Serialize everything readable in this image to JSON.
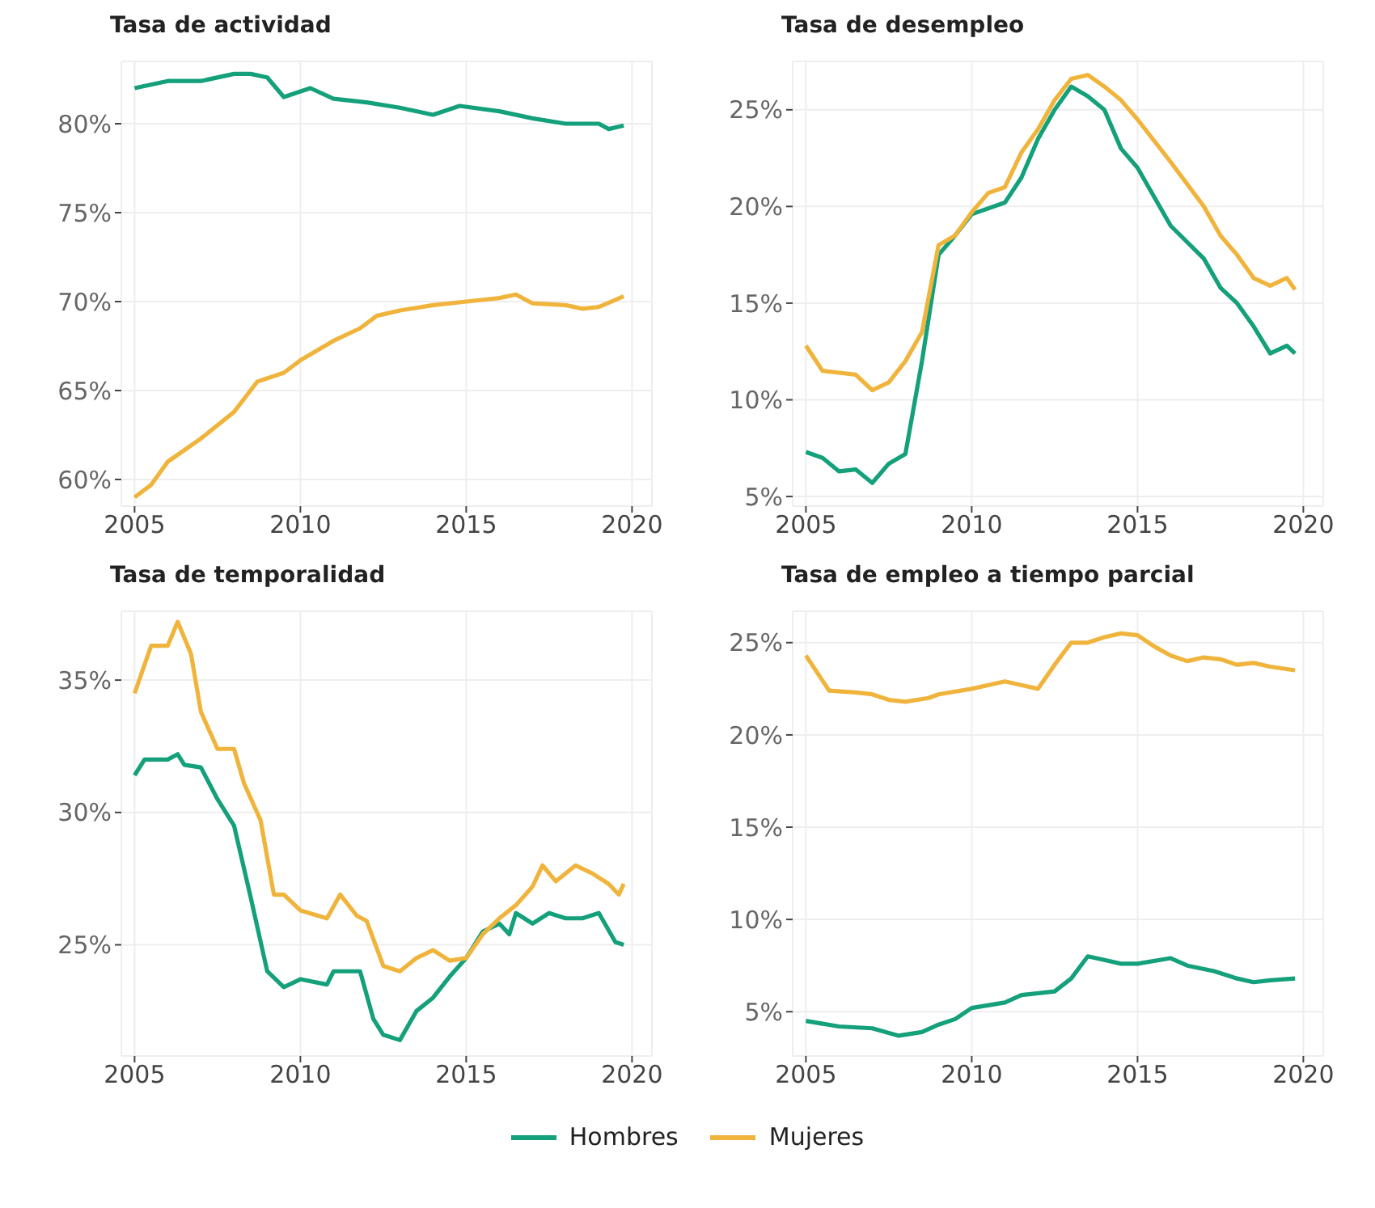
{
  "chart_data": [
    {
      "type": "line",
      "title": "Tasa de actividad",
      "xlim": [
        2004.6,
        2020.6
      ],
      "xticks": [
        2005,
        2010,
        2015,
        2020
      ],
      "ylim": [
        58.5,
        83.5
      ],
      "yticks": [
        {
          "value": 60,
          "label": "60%"
        },
        {
          "value": 65,
          "label": "65%"
        },
        {
          "value": 70,
          "label": "70%"
        },
        {
          "value": 75,
          "label": "75%"
        },
        {
          "value": 80,
          "label": "80%"
        }
      ],
      "grid": true,
      "series": [
        {
          "color": "#13a07a",
          "x": [
            2005,
            2006,
            2007,
            2008,
            2008.5,
            2009,
            2009.5,
            2010.3,
            2011,
            2012,
            2013,
            2014,
            2014.8,
            2016,
            2017,
            2018,
            2019,
            2019.3,
            2019.75
          ],
          "values": [
            82.0,
            82.4,
            82.4,
            82.8,
            82.8,
            82.6,
            81.5,
            82.0,
            81.4,
            81.2,
            80.9,
            80.5,
            81.0,
            80.7,
            80.3,
            80.0,
            80.0,
            79.7,
            79.9
          ]
        },
        {
          "color": "#f0b43c",
          "x": [
            2005,
            2005.5,
            2006,
            2007,
            2008,
            2008.7,
            2009.5,
            2010,
            2011,
            2011.8,
            2012.3,
            2013,
            2014,
            2015,
            2016,
            2016.5,
            2017,
            2018,
            2018.5,
            2019,
            2019.75
          ],
          "values": [
            59.0,
            59.7,
            61.0,
            62.3,
            63.8,
            65.5,
            66.0,
            66.7,
            67.8,
            68.5,
            69.2,
            69.5,
            69.8,
            70.0,
            70.2,
            70.4,
            69.9,
            69.8,
            69.6,
            69.7,
            70.3
          ]
        }
      ]
    },
    {
      "type": "line",
      "title": "Tasa de desempleo",
      "xlim": [
        2004.6,
        2020.6
      ],
      "xticks": [
        2005,
        2010,
        2015,
        2020
      ],
      "ylim": [
        4.5,
        27.5
      ],
      "yticks": [
        {
          "value": 5,
          "label": "5%"
        },
        {
          "value": 10,
          "label": "10%"
        },
        {
          "value": 15,
          "label": "15%"
        },
        {
          "value": 20,
          "label": "20%"
        },
        {
          "value": 25,
          "label": "25%"
        }
      ],
      "grid": true,
      "series": [
        {
          "color": "#13a07a",
          "x": [
            2005,
            2005.5,
            2006,
            2006.5,
            2007,
            2007.5,
            2008,
            2008.5,
            2009,
            2009.5,
            2010,
            2011,
            2011.5,
            2012,
            2012.5,
            2013,
            2013.5,
            2014,
            2014.5,
            2015,
            2016,
            2017,
            2017.5,
            2018,
            2018.5,
            2019,
            2019.5,
            2019.75
          ],
          "values": [
            7.3,
            7.0,
            6.3,
            6.4,
            5.7,
            6.7,
            7.2,
            12,
            17.5,
            18.5,
            19.6,
            20.2,
            21.5,
            23.5,
            25,
            26.2,
            25.7,
            25.0,
            23.0,
            22.0,
            19.0,
            17.3,
            15.8,
            15.0,
            13.8,
            12.4,
            12.8,
            12.4
          ]
        },
        {
          "color": "#f0b43c",
          "x": [
            2005,
            2005.5,
            2006,
            2006.5,
            2007,
            2007.5,
            2008,
            2008.5,
            2009,
            2009.5,
            2010,
            2010.5,
            2011,
            2011.5,
            2012,
            2012.5,
            2013,
            2013.5,
            2014,
            2014.5,
            2015,
            2016,
            2017,
            2017.5,
            2018,
            2018.5,
            2019,
            2019.5,
            2019.75
          ],
          "values": [
            12.8,
            11.5,
            11.4,
            11.3,
            10.5,
            10.9,
            12,
            13.5,
            18.0,
            18.5,
            19.7,
            20.7,
            21.0,
            22.8,
            24.0,
            25.5,
            26.6,
            26.8,
            26.2,
            25.5,
            24.5,
            22.3,
            20.0,
            18.5,
            17.5,
            16.3,
            15.9,
            16.3,
            15.7
          ]
        }
      ]
    },
    {
      "type": "line",
      "title": "Tasa de temporalidad",
      "xlim": [
        2004.6,
        2020.6
      ],
      "xticks": [
        2005,
        2010,
        2015,
        2020
      ],
      "ylim": [
        20.8,
        37.6
      ],
      "yticks": [
        {
          "value": 25,
          "label": "25%"
        },
        {
          "value": 30,
          "label": "30%"
        },
        {
          "value": 35,
          "label": "35%"
        }
      ],
      "grid": true,
      "series": [
        {
          "color": "#13a07a",
          "x": [
            2005,
            2005.3,
            2006,
            2006.3,
            2006.5,
            2007,
            2007.5,
            2008,
            2008.5,
            2009,
            2009.5,
            2010,
            2010.8,
            2011,
            2011.8,
            2012.2,
            2012.5,
            2013,
            2013.5,
            2014,
            2014.5,
            2015,
            2015.5,
            2016,
            2016.3,
            2016.5,
            2017,
            2017.5,
            2018,
            2018.5,
            2019,
            2019.5,
            2019.75
          ],
          "values": [
            31.4,
            32.0,
            32.0,
            32.2,
            31.8,
            31.7,
            30.5,
            29.5,
            26.8,
            24.0,
            23.4,
            23.7,
            23.5,
            24.0,
            24.0,
            22.2,
            21.6,
            21.4,
            22.5,
            23.0,
            23.8,
            24.5,
            25.5,
            25.8,
            25.4,
            26.2,
            25.8,
            26.2,
            26.0,
            26.0,
            26.2,
            25.1,
            25.0
          ]
        },
        {
          "color": "#f0b43c",
          "x": [
            2005,
            2005.5,
            2006,
            2006.3,
            2006.7,
            2007,
            2007.5,
            2008,
            2008.3,
            2008.8,
            2009.2,
            2009.5,
            2010,
            2010.8,
            2011.2,
            2011.7,
            2012,
            2012.5,
            2013,
            2013.5,
            2014,
            2014.5,
            2015,
            2015.5,
            2016,
            2016.5,
            2017,
            2017.3,
            2017.7,
            2018.3,
            2018.8,
            2019.3,
            2019.6,
            2019.75
          ],
          "values": [
            34.5,
            36.3,
            36.3,
            37.2,
            36.0,
            33.8,
            32.4,
            32.4,
            31.1,
            29.7,
            26.9,
            26.9,
            26.3,
            26.0,
            26.9,
            26.1,
            25.9,
            24.2,
            24.0,
            24.5,
            24.8,
            24.4,
            24.5,
            25.4,
            26.0,
            26.5,
            27.2,
            28.0,
            27.4,
            28.0,
            27.7,
            27.3,
            26.9,
            27.3
          ]
        }
      ]
    },
    {
      "type": "line",
      "title": "Tasa de empleo a tiempo parcial",
      "xlim": [
        2004.6,
        2020.6
      ],
      "xticks": [
        2005,
        2010,
        2015,
        2020
      ],
      "ylim": [
        2.6,
        26.7
      ],
      "yticks": [
        {
          "value": 5,
          "label": "5%"
        },
        {
          "value": 10,
          "label": "10%"
        },
        {
          "value": 15,
          "label": "15%"
        },
        {
          "value": 20,
          "label": "20%"
        },
        {
          "value": 25,
          "label": "25%"
        }
      ],
      "grid": true,
      "legend": "bottom",
      "series": [
        {
          "name": "Hombres",
          "color": "#13a07a",
          "x": [
            2005,
            2006,
            2007,
            2007.8,
            2008.5,
            2009,
            2009.5,
            2010,
            2011,
            2011.5,
            2012.5,
            2013,
            2013.5,
            2014,
            2014.5,
            2015,
            2016,
            2016.5,
            2017.3,
            2018,
            2018.5,
            2019,
            2019.75
          ],
          "values": [
            4.5,
            4.2,
            4.1,
            3.7,
            3.9,
            4.3,
            4.6,
            5.2,
            5.5,
            5.9,
            6.1,
            6.8,
            8.0,
            7.8,
            7.6,
            7.6,
            7.9,
            7.5,
            7.2,
            6.8,
            6.6,
            6.7,
            6.8
          ]
        },
        {
          "name": "Mujeres",
          "color": "#f0b43c",
          "x": [
            2005,
            2005.7,
            2006.5,
            2007,
            2007.5,
            2008,
            2008.7,
            2009,
            2010,
            2011,
            2012,
            2012.5,
            2013,
            2013.5,
            2014,
            2014.5,
            2015,
            2015.5,
            2016,
            2016.5,
            2017,
            2017.5,
            2018,
            2018.5,
            2019,
            2019.75
          ],
          "values": [
            24.3,
            22.4,
            22.3,
            22.2,
            21.9,
            21.8,
            22.0,
            22.2,
            22.5,
            22.9,
            22.5,
            23.8,
            25.0,
            25.0,
            25.3,
            25.5,
            25.4,
            24.8,
            24.3,
            24.0,
            24.2,
            24.1,
            23.8,
            23.9,
            23.7,
            23.5
          ]
        }
      ]
    }
  ]
}
